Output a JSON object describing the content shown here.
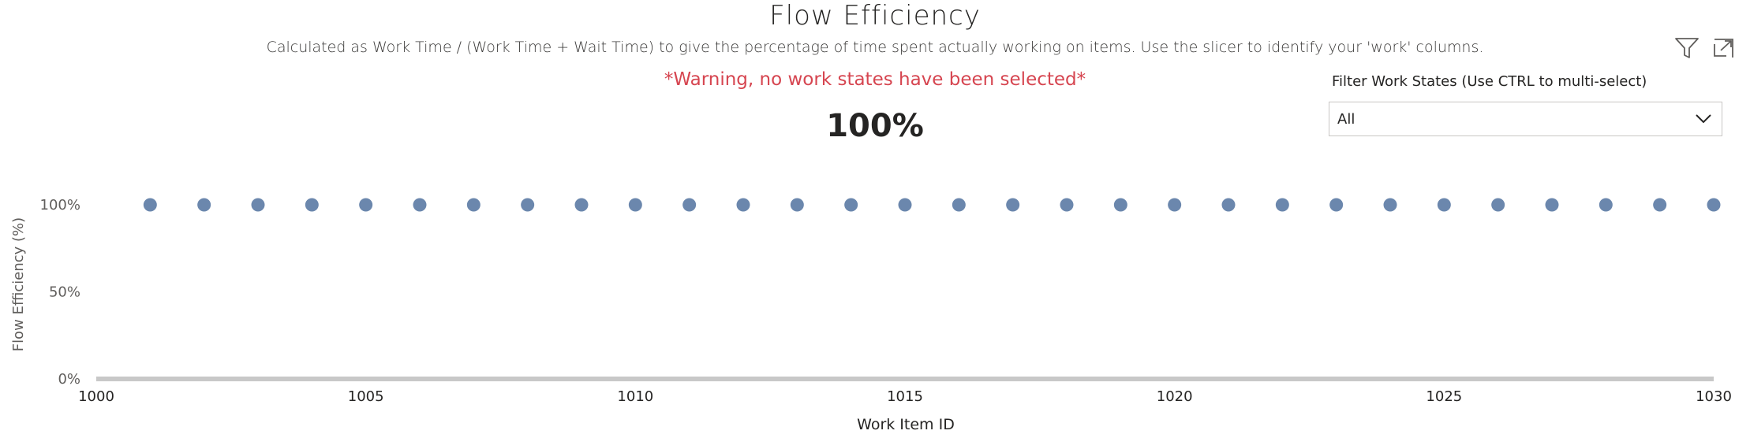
{
  "header": {
    "title": "Flow Efficiency",
    "subtitle": "Calculated as Work Time / (Work Time + Wait Time) to give the percentage of time spent actually working on items. Use the slicer to identify your 'work' columns.",
    "warning": "*Warning, no work states have been selected*",
    "kpi_value": "100%"
  },
  "toolbar": {
    "filter_icon": "filter-icon",
    "expand_icon": "expand-icon"
  },
  "slicer": {
    "label": "Filter Work States (Use CTRL to multi-select)",
    "selected": "All",
    "chevron_icon": "chevron-down-icon"
  },
  "colors": {
    "warning": "#d64550",
    "point": "#6b87ad",
    "axis": "#c8c8c8"
  },
  "chart_data": {
    "type": "scatter",
    "xlabel": "Work Item ID",
    "ylabel": "Flow Efficiency (%)",
    "xlim": [
      1000,
      1030
    ],
    "ylim": [
      0,
      100
    ],
    "x_ticks": [
      "1000",
      "1005",
      "1010",
      "1015",
      "1020",
      "1025",
      "1030"
    ],
    "y_ticks": [
      "0%",
      "50%",
      "100%"
    ],
    "grid": false,
    "points": {
      "x": [
        1001,
        1002,
        1003,
        1004,
        1005,
        1006,
        1007,
        1008,
        1009,
        1010,
        1011,
        1012,
        1013,
        1014,
        1015,
        1016,
        1017,
        1018,
        1019,
        1020,
        1021,
        1022,
        1023,
        1024,
        1025,
        1026,
        1027,
        1028,
        1029,
        1030
      ],
      "y": [
        100,
        100,
        100,
        100,
        100,
        100,
        100,
        100,
        100,
        100,
        100,
        100,
        100,
        100,
        100,
        100,
        100,
        100,
        100,
        100,
        100,
        100,
        100,
        100,
        100,
        100,
        100,
        100,
        100,
        100
      ]
    }
  }
}
